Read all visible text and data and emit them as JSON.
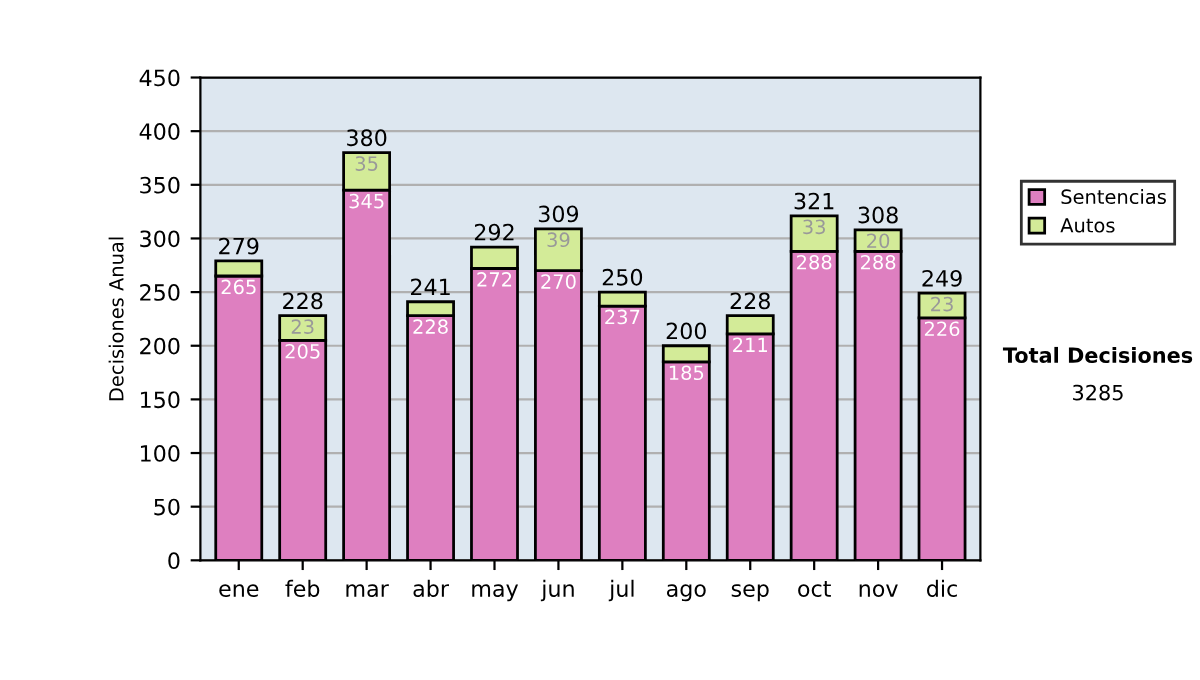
{
  "chart_data": {
    "type": "bar",
    "stacked": true,
    "ylabel": "Decisiones Anual",
    "categories": [
      "ene",
      "feb",
      "mar",
      "abr",
      "may",
      "jun",
      "jul",
      "ago",
      "sep",
      "oct",
      "nov",
      "dic"
    ],
    "series": [
      {
        "name": "Sentencias",
        "color": "#de7fc0",
        "values": [
          265,
          205,
          345,
          228,
          272,
          270,
          237,
          185,
          211,
          288,
          288,
          226
        ],
        "value_labels": [
          "265",
          "205",
          "345",
          "228",
          "272",
          "270",
          "237",
          "185",
          "211",
          "288",
          "288",
          "226"
        ]
      },
      {
        "name": "Autos",
        "color": "#d3eb98",
        "values": [
          14,
          23,
          35,
          13,
          20,
          39,
          13,
          15,
          17,
          33,
          20,
          23
        ],
        "value_labels": [
          null,
          "23",
          "35",
          null,
          null,
          "39",
          null,
          null,
          null,
          "33",
          "20",
          "23"
        ]
      }
    ],
    "totals": [
      "279",
      "228",
      "380",
      "241",
      "292",
      "309",
      "250",
      "200",
      "228",
      "321",
      "308",
      "249"
    ],
    "ylim": [
      0,
      450
    ],
    "yticks": [
      0,
      50,
      100,
      150,
      200,
      250,
      300,
      350,
      400,
      450
    ],
    "grid": "y",
    "legend": "right",
    "annotations": [
      "Total Decisiones",
      "3285"
    ]
  }
}
